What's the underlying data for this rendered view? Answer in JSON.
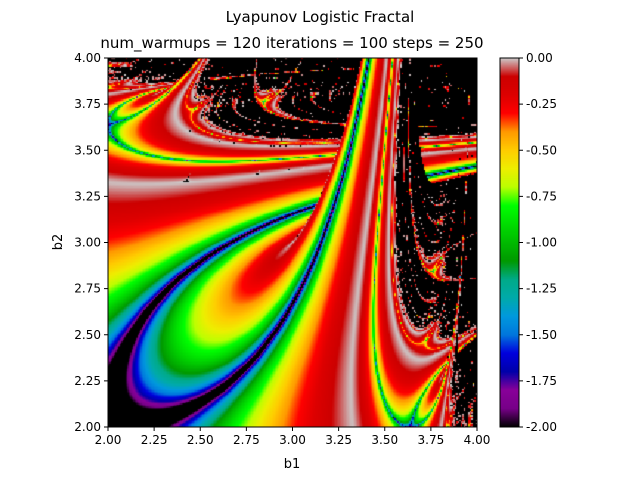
{
  "chart_data": {
    "type": "heatmap",
    "title": "Lyapunov Logistic Fractal",
    "subtitle": "num_warmups = 120 iterations = 100 steps = 250",
    "xlabel": "b1",
    "ylabel": "b2",
    "xlim": [
      2.0,
      4.0
    ],
    "ylim": [
      2.0,
      4.0
    ],
    "x_ticks": [
      "2.00",
      "2.25",
      "2.50",
      "2.75",
      "3.00",
      "3.25",
      "3.50",
      "3.75",
      "4.00"
    ],
    "y_ticks": [
      "2.00",
      "2.25",
      "2.50",
      "2.75",
      "3.00",
      "3.25",
      "3.50",
      "3.75",
      "4.00"
    ],
    "colorbar": {
      "range": [
        -2.0,
        0.0
      ],
      "ticks": [
        "-2.00",
        "-1.75",
        "-1.50",
        "-1.25",
        "-1.00",
        "-0.75",
        "-0.50",
        "-0.25",
        "0.00"
      ],
      "colormap": "nipy_spectral"
    },
    "generator": {
      "map": "logistic",
      "num_warmups": 120,
      "iterations": 100,
      "steps": 250
    },
    "grid": false
  }
}
